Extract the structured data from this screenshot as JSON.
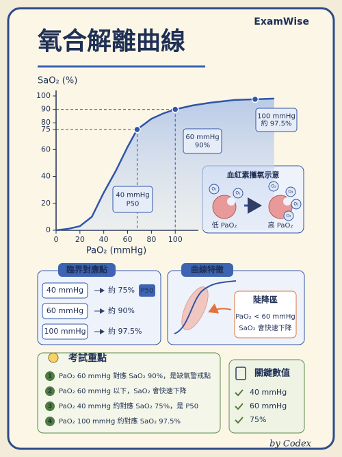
{
  "header": {
    "title": "氧合解離曲線",
    "brand": "ExamWise"
  },
  "chart_data": {
    "type": "line",
    "y_label": "SaO₂ (%)",
    "x_label": "PaO₂ (mmHg)",
    "color": "#2f55a8",
    "x": [
      0,
      10,
      20,
      30,
      40,
      50,
      60,
      68,
      80,
      90,
      100,
      115,
      130,
      150,
      167,
      183
    ],
    "values": [
      0,
      1,
      3,
      10,
      28,
      44,
      62,
      75,
      83,
      87,
      90,
      93,
      95,
      97,
      97.5,
      98
    ],
    "points": {
      "x": [
        68,
        100,
        167
      ],
      "values": [
        75,
        90,
        97.5
      ]
    },
    "annotations": [
      {
        "lines": [
          "40 mmHg",
          "P50"
        ]
      },
      {
        "lines": [
          "60 mmHg",
          "90%"
        ]
      },
      {
        "lines": [
          "100 mmHg",
          "約 97.5%"
        ]
      }
    ],
    "xlim": [
      0,
      190
    ],
    "ylim": [
      0,
      100
    ],
    "xticks": [
      0,
      20,
      40,
      60,
      80,
      100
    ],
    "yticks": [
      0,
      20,
      40,
      60,
      75,
      80,
      90,
      100
    ]
  },
  "inset": {
    "title": "血紅素攜氧示意",
    "o2": "O₂",
    "low": "低 PaO₂",
    "high": "高 PaO₂"
  },
  "critical": {
    "title": "臨界對應點",
    "rows": [
      {
        "pao2": "40 mmHg",
        "sao2": "約 75%",
        "tag": "P50"
      },
      {
        "pao2": "60 mmHg",
        "sao2": "約 90%"
      },
      {
        "pao2": "100 mmHg",
        "sao2": "約 97.5%"
      }
    ]
  },
  "feature": {
    "title": "曲線特徵",
    "box_title": "陡降區",
    "lines": [
      "PaO₂ < 60 mmHg",
      "SaO₂ 會快速下降"
    ]
  },
  "exam": {
    "title": "考試重點",
    "items": [
      {
        "n": "1",
        "text": "PaO₂ 60 mmHg 對應 SaO₂ 90%，是缺氧警戒點"
      },
      {
        "n": "2",
        "text": "PaO₂ 60 mmHg 以下，SaO₂ 會快速下降"
      },
      {
        "n": "3",
        "text": "PaO₂ 40 mmHg 約對應 SaO₂ 75%，是 P50"
      },
      {
        "n": "4",
        "text": "PaO₂ 100 mmHg 約對應 SaO₂ 97.5%"
      }
    ]
  },
  "key_values": {
    "title": "關鍵數值",
    "items": [
      "40 mmHg",
      "60 mmHg",
      "75%"
    ]
  },
  "footer": "by Codex"
}
